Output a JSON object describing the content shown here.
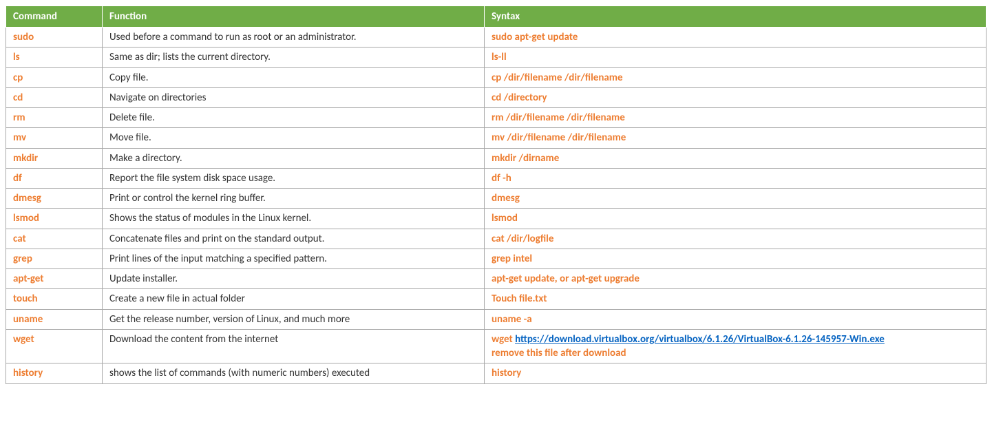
{
  "table": {
    "header_bg": "#70ad47",
    "header_fg": "#ffffff",
    "header_fontsize": 15,
    "cell_border": "#a8a8a8",
    "cell_bg": "#ffffff",
    "cmd_color": "#ed7d31",
    "func_color": "#333333",
    "syntax_color": "#ed7d31",
    "link_color": "#0563c1",
    "body_fontsize": 15,
    "col_widths": [
      "140px",
      "555px",
      "auto"
    ],
    "columns": [
      "Command",
      "Function",
      "Syntax"
    ],
    "rows": [
      {
        "command": "sudo",
        "function": "Used before a command to run as root or an administrator.",
        "syntax": "sudo apt-get update"
      },
      {
        "command": "ls",
        "function": "Same as dir; lists the current directory.",
        "syntax": "ls-ll"
      },
      {
        "command": "cp",
        "function": "Copy file.",
        "syntax": "cp /dir/filename /dir/filename"
      },
      {
        "command": "cd",
        "function": "Navigate on directories",
        "syntax": "cd  /directory"
      },
      {
        "command": "rm",
        "function": "Delete file.",
        "syntax": "rm /dir/filename /dir/filename"
      },
      {
        "command": "mv",
        "function": "Move file.",
        "syntax": "mv /dir/filename /dir/filename"
      },
      {
        "command": "mkdir",
        "function": "Make a directory.",
        "syntax": "mkdir /dirname"
      },
      {
        "command": "df",
        "function": "Report the file system disk space usage.",
        "syntax": "df -h"
      },
      {
        "command": "dmesg",
        "function": "Print or control the kernel ring buffer.",
        "syntax": "dmesg"
      },
      {
        "command": "lsmod",
        "function": "Shows the status of modules in the Linux kernel.",
        "syntax": "lsmod"
      },
      {
        "command": "cat",
        "function": "Concatenate files and print on the standard output.",
        "syntax": "cat /dir/logfile"
      },
      {
        "command": "grep",
        "function": "Print lines of the input matching a specified pattern.",
        "syntax": "grep intel"
      },
      {
        "command": "apt-get",
        "function": "Update installer.",
        "syntax": "apt-get update, or apt-get upgrade"
      },
      {
        "command": "touch",
        "function": "Create a new file in actual folder",
        "syntax": "Touch file.txt"
      },
      {
        "command": "uname",
        "function": "Get the release number, version of Linux, and much more",
        "syntax": "uname -a"
      },
      {
        "command": "wget",
        "function": "Download the content from the internet",
        "syntax_prefix": "wget ",
        "syntax_link": "https://download.virtualbox.org/virtualbox/6.1.26/VirtualBox-6.1.26-145957-Win.exe",
        "syntax_extra": "remove this file after download"
      },
      {
        "command": "history",
        "function": "shows the list of commands (with numeric numbers) executed",
        "syntax": "history"
      }
    ]
  }
}
